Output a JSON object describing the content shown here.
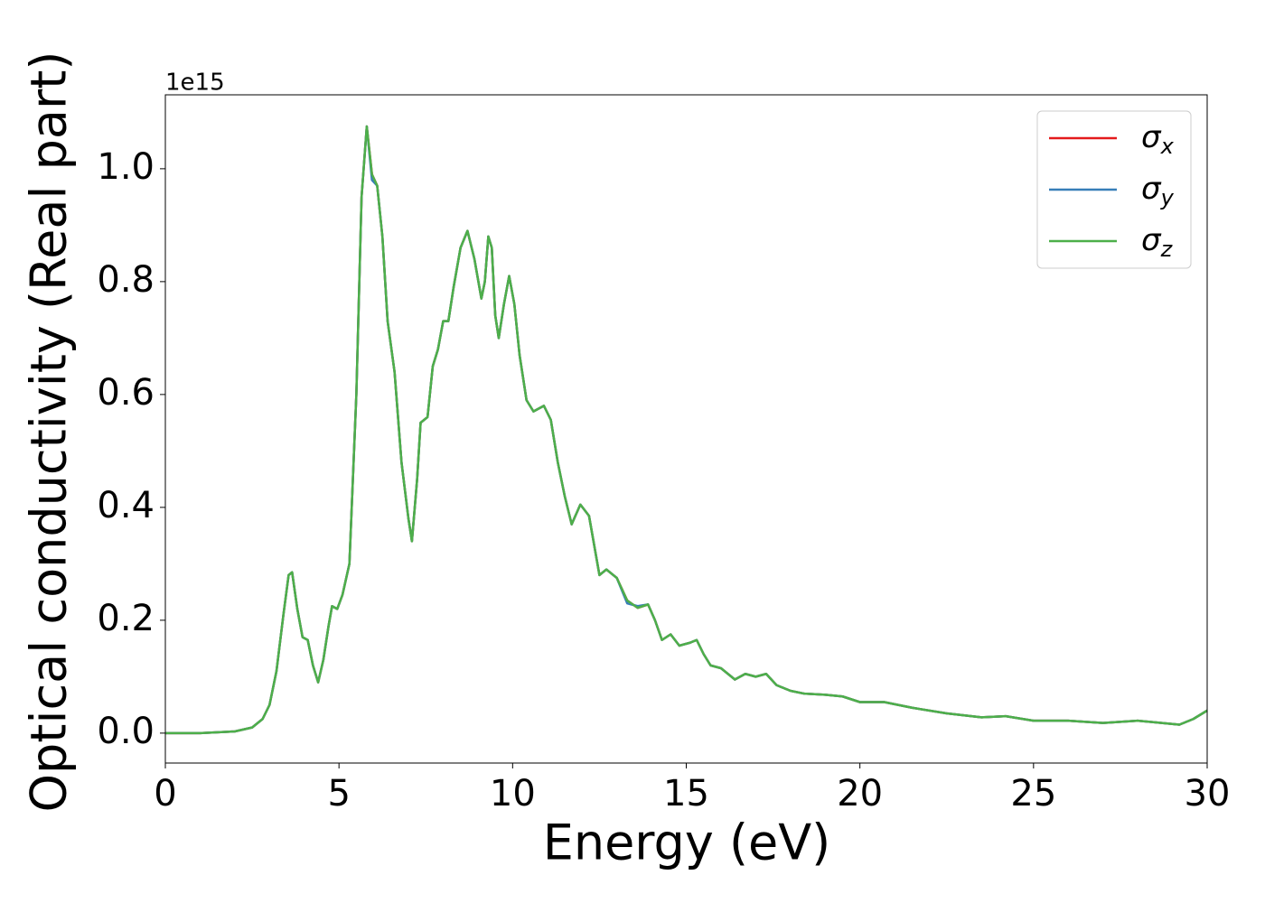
{
  "chart_data": {
    "type": "line",
    "xlabel": "Energy (eV)",
    "ylabel": "Optical conductivity (Real part)",
    "offset_label": "1e15",
    "x": [
      0,
      1,
      2,
      2.5,
      2.8,
      3.0,
      3.2,
      3.4,
      3.55,
      3.65,
      3.8,
      3.95,
      4.1,
      4.25,
      4.4,
      4.55,
      4.7,
      4.8,
      4.95,
      5.1,
      5.3,
      5.5,
      5.65,
      5.8,
      5.95,
      6.1,
      6.25,
      6.4,
      6.6,
      6.8,
      7.0,
      7.1,
      7.25,
      7.35,
      7.55,
      7.7,
      7.85,
      8.0,
      8.15,
      8.3,
      8.5,
      8.7,
      8.9,
      9.1,
      9.2,
      9.3,
      9.4,
      9.5,
      9.6,
      9.75,
      9.9,
      10.05,
      10.2,
      10.4,
      10.6,
      10.9,
      11.1,
      11.3,
      11.5,
      11.7,
      11.95,
      12.2,
      12.5,
      12.7,
      13.0,
      13.3,
      13.6,
      13.9,
      14.1,
      14.3,
      14.55,
      14.8,
      15.1,
      15.3,
      15.5,
      15.7,
      16.0,
      16.4,
      16.7,
      17.0,
      17.3,
      17.6,
      18.0,
      18.4,
      19.0,
      19.5,
      20.0,
      20.7,
      21.5,
      22.5,
      23.5,
      24.2,
      25,
      26,
      27,
      28,
      29.2,
      29.6,
      30
    ],
    "series": [
      {
        "name": "σx",
        "color": "#e41a1c",
        "values": [
          0,
          0,
          0.003,
          0.01,
          0.025,
          0.05,
          0.11,
          0.21,
          0.28,
          0.285,
          0.22,
          0.17,
          0.165,
          0.12,
          0.09,
          0.13,
          0.19,
          0.225,
          0.22,
          0.245,
          0.3,
          0.6,
          0.95,
          1.075,
          0.99,
          0.97,
          0.88,
          0.73,
          0.64,
          0.48,
          0.38,
          0.34,
          0.45,
          0.55,
          0.56,
          0.65,
          0.68,
          0.73,
          0.73,
          0.79,
          0.86,
          0.89,
          0.84,
          0.77,
          0.8,
          0.88,
          0.86,
          0.74,
          0.7,
          0.76,
          0.81,
          0.76,
          0.67,
          0.59,
          0.57,
          0.58,
          0.555,
          0.48,
          0.42,
          0.37,
          0.405,
          0.385,
          0.28,
          0.29,
          0.275,
          0.235,
          0.222,
          0.228,
          0.2,
          0.165,
          0.175,
          0.155,
          0.16,
          0.165,
          0.14,
          0.12,
          0.115,
          0.095,
          0.105,
          0.1,
          0.105,
          0.085,
          0.075,
          0.07,
          0.068,
          0.065,
          0.055,
          0.055,
          0.045,
          0.035,
          0.028,
          0.03,
          0.022,
          0.022,
          0.018,
          0.022,
          0.015,
          0.025,
          0.04
        ]
      },
      {
        "name": "σy",
        "color": "#377eb8",
        "values": [
          0,
          0,
          0.003,
          0.01,
          0.025,
          0.05,
          0.11,
          0.21,
          0.28,
          0.285,
          0.22,
          0.17,
          0.165,
          0.12,
          0.09,
          0.13,
          0.19,
          0.225,
          0.22,
          0.245,
          0.3,
          0.6,
          0.95,
          1.075,
          0.98,
          0.97,
          0.88,
          0.73,
          0.64,
          0.48,
          0.38,
          0.34,
          0.45,
          0.55,
          0.56,
          0.65,
          0.68,
          0.73,
          0.73,
          0.79,
          0.86,
          0.89,
          0.84,
          0.77,
          0.8,
          0.88,
          0.86,
          0.74,
          0.7,
          0.76,
          0.81,
          0.76,
          0.67,
          0.59,
          0.57,
          0.58,
          0.555,
          0.48,
          0.42,
          0.37,
          0.405,
          0.385,
          0.28,
          0.29,
          0.275,
          0.23,
          0.225,
          0.228,
          0.2,
          0.165,
          0.175,
          0.155,
          0.16,
          0.165,
          0.14,
          0.12,
          0.115,
          0.095,
          0.105,
          0.1,
          0.105,
          0.085,
          0.075,
          0.07,
          0.068,
          0.065,
          0.055,
          0.055,
          0.045,
          0.035,
          0.028,
          0.03,
          0.022,
          0.022,
          0.018,
          0.022,
          0.015,
          0.025,
          0.04
        ]
      },
      {
        "name": "σz",
        "color": "#4daf4a",
        "values": [
          0,
          0,
          0.003,
          0.01,
          0.025,
          0.05,
          0.11,
          0.21,
          0.28,
          0.285,
          0.22,
          0.17,
          0.165,
          0.12,
          0.09,
          0.13,
          0.19,
          0.225,
          0.22,
          0.245,
          0.3,
          0.6,
          0.95,
          1.075,
          0.99,
          0.97,
          0.88,
          0.73,
          0.64,
          0.48,
          0.38,
          0.34,
          0.45,
          0.55,
          0.56,
          0.65,
          0.68,
          0.73,
          0.73,
          0.79,
          0.86,
          0.89,
          0.84,
          0.77,
          0.8,
          0.88,
          0.86,
          0.74,
          0.7,
          0.76,
          0.81,
          0.76,
          0.67,
          0.59,
          0.57,
          0.58,
          0.555,
          0.48,
          0.42,
          0.37,
          0.405,
          0.385,
          0.28,
          0.29,
          0.275,
          0.235,
          0.222,
          0.228,
          0.2,
          0.165,
          0.175,
          0.155,
          0.16,
          0.165,
          0.14,
          0.12,
          0.115,
          0.095,
          0.105,
          0.1,
          0.105,
          0.085,
          0.075,
          0.07,
          0.068,
          0.065,
          0.055,
          0.055,
          0.045,
          0.035,
          0.028,
          0.03,
          0.022,
          0.022,
          0.018,
          0.022,
          0.015,
          0.025,
          0.04
        ]
      }
    ],
    "xlim": [
      0,
      30
    ],
    "xticks": [
      0,
      5,
      10,
      15,
      20,
      25,
      30
    ],
    "ylim": [
      -0.053,
      1.131
    ],
    "yticks": [
      {
        "value": 0,
        "label": "0.0"
      },
      0.2,
      0.4,
      0.6,
      0.8,
      {
        "value": 1,
        "label": "1.0"
      }
    ],
    "grid": false,
    "legend": "upper right"
  }
}
